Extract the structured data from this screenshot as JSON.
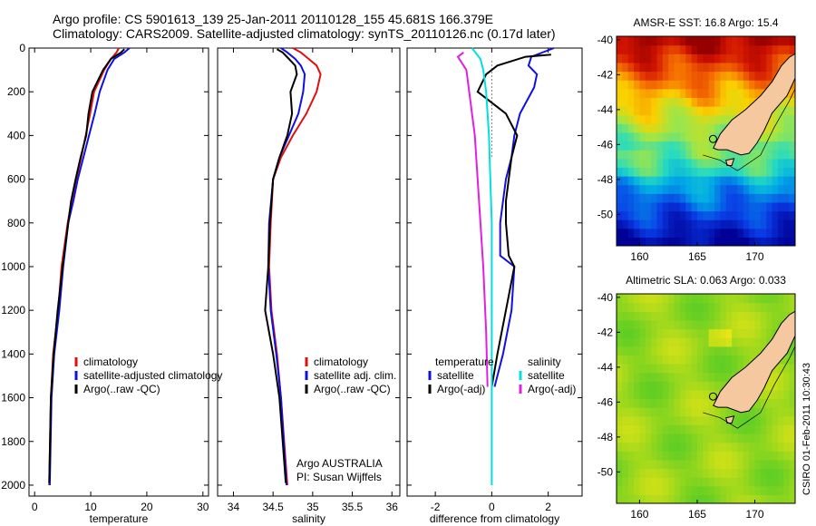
{
  "header": {
    "title_line1": "Argo profile: CS 5901613_139 25-Jan-2011 20110128_155 45.681S 166.379E",
    "title_line2": "Climatology: CARS2009. Satellite-adjusted climatology: synTS_20110126.nc (0.17d later)"
  },
  "footer": {
    "credit_line1": "Argo AUSTRALIA",
    "credit_line2": "PI: Susan Wijffels",
    "timestamp": "CSIRO 01-Feb-2011 10:30:43"
  },
  "colors": {
    "climatology": "#e01010",
    "satellite": "#1010e0",
    "argo": "#000000",
    "sat_salinity": "#00e0e0",
    "argo_salinity": "#e020e0",
    "land": "#f5c8a0"
  },
  "chart_data": [
    {
      "id": "temperature",
      "type": "line",
      "xlabel": "temperature",
      "xlim": [
        -1,
        31
      ],
      "ylim": [
        0,
        2050
      ],
      "yreversed": true,
      "xticks": [
        0,
        10,
        20,
        30
      ],
      "yticks": [
        0,
        200,
        400,
        600,
        800,
        1000,
        1200,
        1400,
        1600,
        1800,
        2000
      ],
      "legend": [
        "climatology",
        "satellite-adjusted climatology",
        "Argo(..raw -QC)"
      ],
      "series": [
        {
          "name": "climatology",
          "color": "#e01010",
          "x": [
            15.0,
            14.6,
            13.6,
            12.4,
            10.6,
            9.9,
            9.1,
            8.3,
            7.4,
            6.6,
            5.9,
            4.8,
            4.2,
            3.3,
            2.9,
            2.6
          ],
          "y": [
            0,
            20,
            50,
            100,
            200,
            300,
            400,
            500,
            600,
            700,
            800,
            1000,
            1200,
            1400,
            1600,
            2000
          ]
        },
        {
          "name": "satellite-adjusted climatology",
          "color": "#1010e0",
          "x": [
            16.9,
            16.0,
            14.2,
            13.0,
            11.6,
            10.7,
            9.7,
            8.7,
            7.7,
            6.9,
            6.0,
            5.1,
            4.4,
            3.5,
            3.0,
            2.7
          ],
          "y": [
            0,
            20,
            50,
            100,
            200,
            300,
            400,
            500,
            600,
            700,
            800,
            1000,
            1200,
            1400,
            1600,
            2000
          ]
        },
        {
          "name": "Argo(..raw -QC)",
          "color": "#000000",
          "x": [
            16.0,
            15.4,
            13.6,
            12.2,
            10.3,
            9.6,
            9.2,
            8.2,
            7.3,
            6.5,
            6.0,
            5.0,
            4.1,
            3.4,
            2.9,
            2.6
          ],
          "y": [
            5,
            20,
            50,
            100,
            200,
            300,
            400,
            500,
            600,
            700,
            800,
            1000,
            1200,
            1400,
            1600,
            1990
          ]
        }
      ]
    },
    {
      "id": "salinity",
      "type": "line",
      "xlabel": "salinity",
      "xlim": [
        33.8,
        36.1
      ],
      "ylim": [
        0,
        2050
      ],
      "yreversed": true,
      "xticks": [
        34,
        34.5,
        35,
        35.5,
        36
      ],
      "xtick_labels": [
        "34",
        "34.5",
        "35",
        "35.5",
        "36"
      ],
      "yticks": [
        0,
        200,
        400,
        600,
        800,
        1000,
        1200,
        1400,
        1600,
        1800,
        2000
      ],
      "legend": [
        "climatology",
        "satellite adj. clim.",
        "Argo(..raw -QC)"
      ],
      "series": [
        {
          "name": "climatology",
          "color": "#e01010",
          "x": [
            34.75,
            34.85,
            34.95,
            35.05,
            35.1,
            35.05,
            34.92,
            34.75,
            34.6,
            34.5,
            34.47,
            34.45,
            34.48,
            34.55,
            34.6,
            34.68
          ],
          "y": [
            0,
            20,
            50,
            80,
            120,
            200,
            300,
            400,
            500,
            600,
            800,
            1000,
            1200,
            1400,
            1600,
            2000
          ]
        },
        {
          "name": "satellite adj. clim.",
          "color": "#1010e0",
          "x": [
            34.6,
            34.68,
            34.78,
            34.85,
            34.9,
            34.88,
            34.82,
            34.7,
            34.58,
            34.5,
            34.45,
            34.44,
            34.47,
            34.54,
            34.6,
            34.67
          ],
          "y": [
            0,
            20,
            50,
            80,
            120,
            200,
            300,
            400,
            500,
            600,
            800,
            1000,
            1200,
            1400,
            1600,
            2000
          ]
        },
        {
          "name": "Argo(..raw -QC)",
          "color": "#000000",
          "x": [
            34.55,
            34.62,
            34.7,
            34.78,
            34.8,
            34.72,
            34.74,
            34.68,
            34.58,
            34.5,
            34.46,
            34.44,
            34.4,
            34.5,
            34.58,
            34.66
          ],
          "y": [
            5,
            20,
            50,
            80,
            120,
            200,
            300,
            400,
            500,
            600,
            800,
            1000,
            1200,
            1400,
            1600,
            1990
          ]
        }
      ]
    },
    {
      "id": "difference",
      "type": "line",
      "xlabel": "difference from climatology",
      "xlim": [
        -3,
        3.2
      ],
      "ylim": [
        0,
        2050
      ],
      "yreversed": true,
      "xticks": [
        -2,
        0,
        2
      ],
      "yticks": [
        0,
        200,
        400,
        600,
        800,
        1000,
        1200,
        1400,
        1600,
        1800,
        2000
      ],
      "legend_headers": [
        "temperature",
        "salinity"
      ],
      "legend": [
        "satellite",
        "Argo(-adj)",
        "satellite",
        "Argo(-adj)"
      ],
      "series": [
        {
          "name": "satellite",
          "group": "temperature",
          "color": "#1010e0",
          "x": [
            2.2,
            1.4,
            1.3,
            1.6,
            1.5,
            1.0,
            0.8,
            0.7,
            0.5,
            0.4,
            0.3,
            0.3,
            0.8,
            0.7,
            0.4,
            0.1
          ],
          "y": [
            0,
            40,
            80,
            120,
            180,
            300,
            400,
            500,
            600,
            700,
            800,
            950,
            1000,
            1200,
            1400,
            1550
          ]
        },
        {
          "name": "Argo(-adj)",
          "group": "temperature",
          "color": "#000000",
          "x": [
            2.1,
            1.2,
            0.2,
            -0.2,
            -0.5,
            0.5,
            0.9,
            0.7,
            0.6,
            0.5,
            0.5,
            0.6,
            0.8,
            0.5,
            0.2,
            0.0
          ],
          "y": [
            30,
            40,
            80,
            120,
            200,
            300,
            400,
            500,
            600,
            700,
            800,
            950,
            1000,
            1200,
            1400,
            1550
          ]
        },
        {
          "name": "satellite",
          "group": "salinity",
          "color": "#00e0e0",
          "x": [
            -0.7,
            -0.4,
            -0.3,
            -0.2,
            -0.1,
            -0.05,
            0.0,
            0.0,
            0.0,
            0.0
          ],
          "y": [
            0,
            50,
            100,
            200,
            400,
            600,
            800,
            1200,
            1600,
            2000
          ]
        },
        {
          "name": "Argo(-adj)",
          "group": "salinity",
          "color": "#e020e0",
          "x": [
            -1.0,
            -1.2,
            -0.9,
            -0.8,
            -0.6,
            -0.5,
            -0.4,
            -0.3,
            -0.2,
            -0.15
          ],
          "y": [
            20,
            40,
            100,
            200,
            400,
            600,
            800,
            1000,
            1300,
            1550
          ]
        },
        {
          "name": "zero",
          "group": "reference",
          "color": "#000000",
          "x": [
            0,
            0
          ],
          "y": [
            60,
            500
          ]
        }
      ]
    },
    {
      "id": "sst-map",
      "type": "heatmap",
      "title": "AMSR-E SST: 16.8 Argo: 15.4",
      "xlim": [
        158,
        173.5
      ],
      "ylim": [
        -51.8,
        -39.8
      ],
      "xticks": [
        160,
        165,
        170
      ],
      "yticks": [
        -40,
        -42,
        -44,
        -46,
        -48,
        -50
      ]
    },
    {
      "id": "sla-map",
      "type": "heatmap",
      "title": "Altimetric SLA: 0.063 Argo: 0.033",
      "xlim": [
        158,
        173.5
      ],
      "ylim": [
        -51.8,
        -39.8
      ],
      "xticks": [
        160,
        165,
        170
      ],
      "yticks": [
        -40,
        -42,
        -44,
        -46,
        -48,
        -50
      ]
    }
  ]
}
